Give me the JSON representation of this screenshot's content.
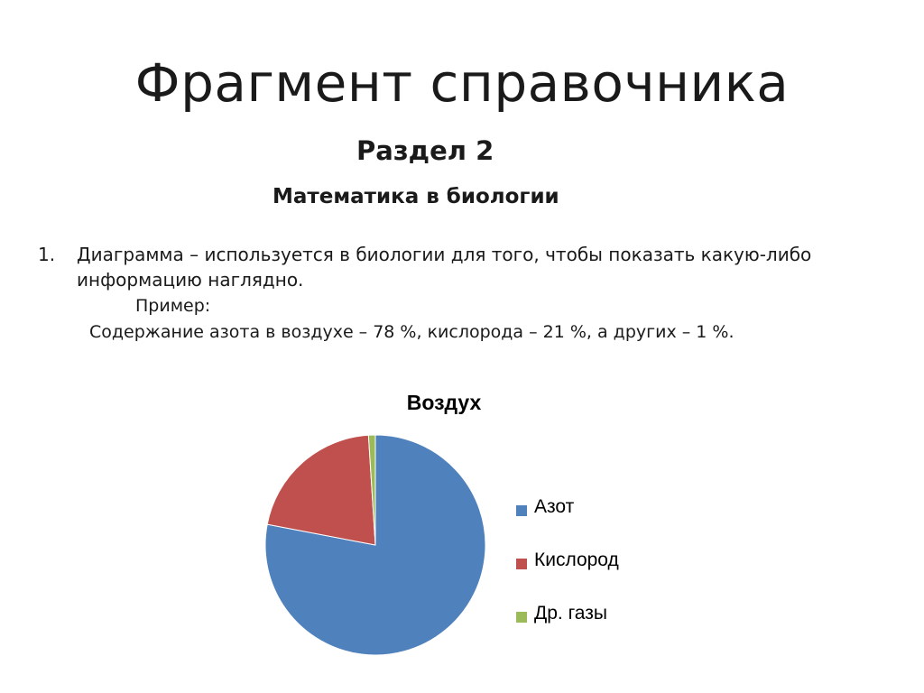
{
  "slide": {
    "title": "Фрагмент справочника",
    "subtitle": "Раздел 2",
    "section": "Математика в биологии",
    "list": [
      {
        "number": "1.",
        "text": "Диаграмма – используется в биологии для того, чтобы показать какую-либо информацию наглядно."
      }
    ],
    "example_label": "Пример:",
    "example_text": "Содержание азота в воздухе – 78 %, кислорода – 21 %, а других – 1 %."
  },
  "chart_data": {
    "type": "pie",
    "title": "Воздух",
    "categories": [
      "Азот",
      "Кислород",
      "Др. газы"
    ],
    "values": [
      78,
      21,
      1
    ],
    "colors": [
      "#4F81BD",
      "#C0504D",
      "#9BBB59"
    ],
    "legend_position": "right"
  }
}
